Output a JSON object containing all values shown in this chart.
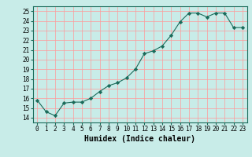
{
  "x": [
    0,
    1,
    2,
    3,
    4,
    5,
    6,
    7,
    8,
    9,
    10,
    11,
    12,
    13,
    14,
    15,
    16,
    17,
    18,
    19,
    20,
    21,
    22,
    23
  ],
  "y": [
    15.8,
    14.6,
    14.2,
    15.5,
    15.6,
    15.6,
    16.0,
    16.7,
    17.3,
    17.6,
    18.1,
    19.0,
    20.6,
    20.9,
    21.4,
    22.5,
    23.9,
    24.8,
    24.8,
    24.4,
    24.8,
    24.8,
    23.3,
    23.3
  ],
  "title": "",
  "xlabel": "Humidex (Indice chaleur)",
  "ylabel": "",
  "ylim": [
    13.5,
    25.5
  ],
  "xlim": [
    -0.5,
    23.5
  ],
  "line_color": "#1a6b5a",
  "marker": "D",
  "marker_size": 2.2,
  "bg_color": "#c8ece8",
  "grid_color": "#ff9999",
  "yticks": [
    14,
    15,
    16,
    17,
    18,
    19,
    20,
    21,
    22,
    23,
    24,
    25
  ],
  "xticks": [
    0,
    1,
    2,
    3,
    4,
    5,
    6,
    7,
    8,
    9,
    10,
    11,
    12,
    13,
    14,
    15,
    16,
    17,
    18,
    19,
    20,
    21,
    22,
    23
  ],
  "tick_fontsize": 5.5,
  "xlabel_fontsize": 7.0
}
